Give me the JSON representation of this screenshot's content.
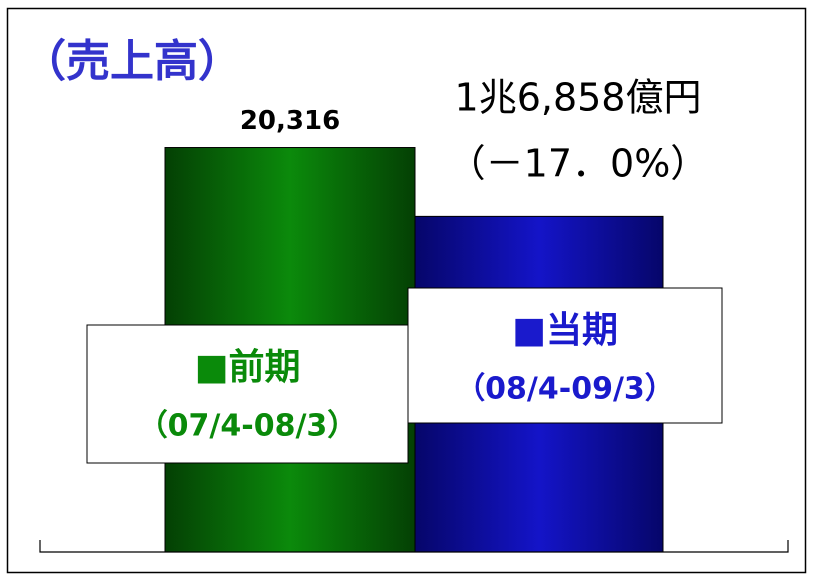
{
  "chart_data": {
    "type": "bar",
    "title": "（売上高）",
    "categories": [
      "■前期",
      "■当期"
    ],
    "periods": [
      "（07/4-08/3）",
      "（08/4-09/3）"
    ],
    "values": [
      20316,
      16858
    ],
    "value_labels": [
      "20,316",
      "1兆6,858億円"
    ],
    "annotation": "（－17．0%）",
    "colors": [
      "#0b8a0b",
      "#1414c8"
    ],
    "label_colors": [
      "#0a8a0a",
      "#1a1acc"
    ],
    "ylim": [
      0,
      22000
    ]
  }
}
